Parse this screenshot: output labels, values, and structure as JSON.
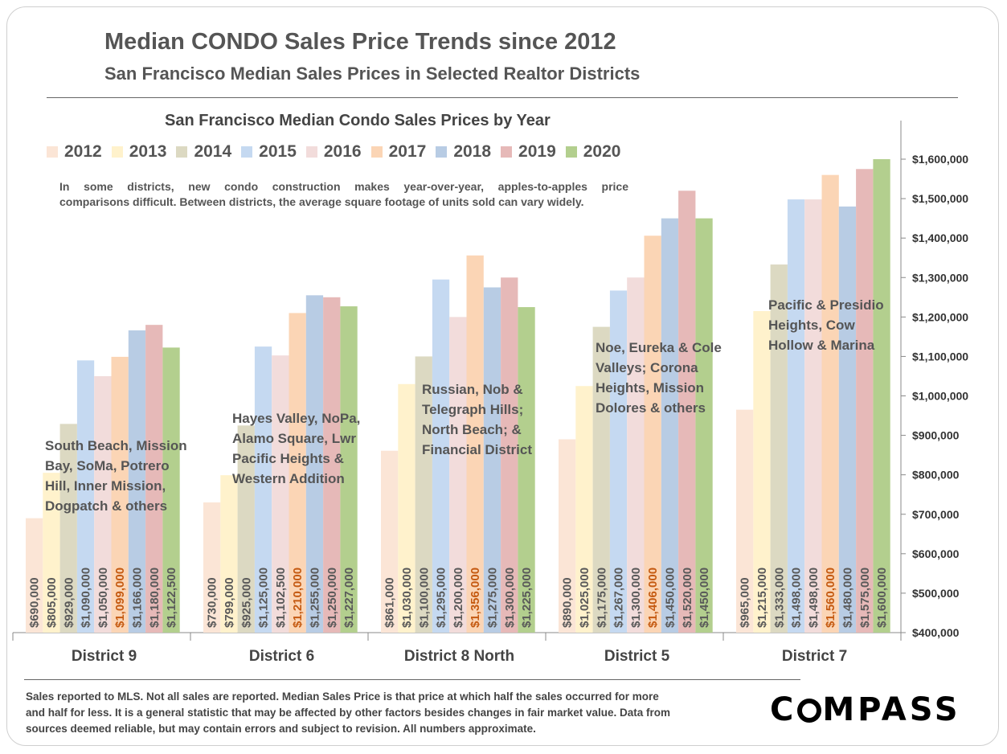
{
  "header": {
    "title": "Median CONDO Sales Price Trends since 2012",
    "subtitle": "San Francisco Median Sales Prices in Selected Realtor Districts"
  },
  "note": {
    "line1": "In some districts, new condo construction makes year-over-year, apples-to-apples price",
    "line2": "comparisons difficult. Between districts, the average square footage of units sold can vary widely."
  },
  "footer": {
    "line1": "Sales reported to MLS. Not all sales are reported. Median Sales Price is that price at which half the sales occurred for more",
    "line2": "and half for less. It is a general statistic that may be affected by other factors besides changes in fair market value. Data from",
    "line3": "sources deemed reliable, but may contain errors and subject to revision.  All numbers approximate."
  },
  "logo": {
    "left": "C",
    "right": "MPASS"
  },
  "colors": {
    "2012": "#fbe5d6",
    "2013": "#fff2cc",
    "2014": "#dcd9c2",
    "2015": "#c5d9f1",
    "2016": "#f2dcdb",
    "2017": "#fbd5b5",
    "2018": "#b8cce4",
    "2019": "#e6b9b8",
    "2020": "#b3cf8e",
    "label_default": "#595959",
    "label_2017": "#c55a11"
  },
  "chart_data": {
    "type": "bar",
    "title": "San Francisco Median Condo Sales Prices by Year",
    "categories": [
      "District 9",
      "District 6",
      "District 8 North",
      "District 5",
      "District 7"
    ],
    "series": [
      {
        "name": "2012",
        "values": [
          690000,
          730000,
          861000,
          890000,
          965000
        ]
      },
      {
        "name": "2013",
        "values": [
          805000,
          799000,
          1030000,
          1025000,
          1215000
        ]
      },
      {
        "name": "2014",
        "values": [
          929000,
          925000,
          1100000,
          1175000,
          1333000
        ]
      },
      {
        "name": "2015",
        "values": [
          1090000,
          1125000,
          1295000,
          1267000,
          1498000
        ]
      },
      {
        "name": "2016",
        "values": [
          1050000,
          1102500,
          1200000,
          1300000,
          1498000
        ]
      },
      {
        "name": "2017",
        "values": [
          1099000,
          1210000,
          1356000,
          1406000,
          1560000
        ]
      },
      {
        "name": "2018",
        "values": [
          1166000,
          1255000,
          1275000,
          1450000,
          1480000
        ]
      },
      {
        "name": "2019",
        "values": [
          1180000,
          1250000,
          1300000,
          1520000,
          1575000
        ]
      },
      {
        "name": "2020",
        "values": [
          1122500,
          1227000,
          1225000,
          1450000,
          1600000
        ]
      }
    ],
    "value_labels": [
      [
        "$690,000",
        "$805,000",
        "$929,000",
        "$1,090,000",
        "$1,050,000",
        "$1,099,000",
        "$1,166,000",
        "$1,180,000",
        "$1,122,500"
      ],
      [
        "$730,000",
        "$799,000",
        "$925,000",
        "$1,125,000",
        "$1,102,500",
        "$1,210,000",
        "$1,255,000",
        "$1,250,000",
        "$1,227,000"
      ],
      [
        "$861,000",
        "$1,030,000",
        "$1,100,000",
        "$1,295,000",
        "$1,200,000",
        "$1,356,000",
        "$1,275,000",
        "$1,300,000",
        "$1,225,000"
      ],
      [
        "$890,000",
        "$1,025,000",
        "$1,175,000",
        "$1,267,000",
        "$1,300,000",
        "$1,406,000",
        "$1,450,000",
        "$1,520,000",
        "$1,450,000"
      ],
      [
        "$965,000",
        "$1,215,000",
        "$1,333,000",
        "$1,498,000",
        "$1,498,000",
        "$1,560,000",
        "$1,480,000",
        "$1,575,000",
        "$1,600,000"
      ]
    ],
    "district_descriptions": [
      [
        "South Beach, Mission",
        "Bay, SoMa, Potrero",
        "Hill, Inner Mission,",
        "Dogpatch & others"
      ],
      [
        "Hayes Valley, NoPa,",
        "Alamo Square, Lwr",
        "Pacific Heights &",
        "Western Addition"
      ],
      [
        "Russian, Nob &",
        "Telegraph Hills;",
        "North Beach; &",
        "Financial District"
      ],
      [
        "Noe, Eureka & Cole",
        "Valleys; Corona",
        "Heights, Mission",
        "Dolores & others"
      ],
      [
        "Pacific & Presidio",
        "Heights, Cow",
        "Hollow & Marina"
      ]
    ],
    "y_axis": {
      "min": 400000,
      "max": 1600000,
      "ticks": [
        400000,
        500000,
        600000,
        700000,
        800000,
        900000,
        1000000,
        1100000,
        1200000,
        1300000,
        1400000,
        1500000,
        1600000
      ],
      "tick_labels": [
        "$400,000",
        "$500,000",
        "$600,000",
        "$700,000",
        "$800,000",
        "$900,000",
        "$1,000,000",
        "$1,100,000",
        "$1,200,000",
        "$1,300,000",
        "$1,400,000",
        "$1,500,000",
        "$1,600,000"
      ],
      "position": "right"
    },
    "legend_position": "top-left",
    "grid": false
  }
}
